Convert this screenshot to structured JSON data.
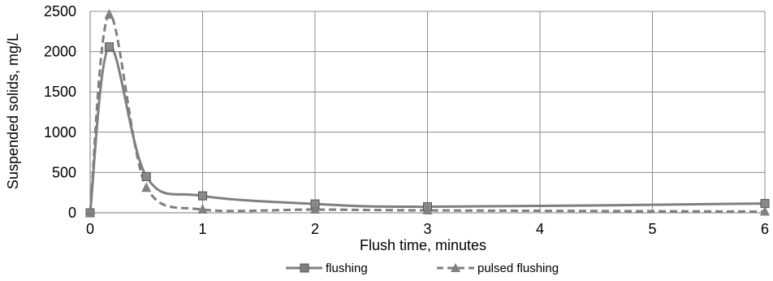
{
  "chart_data": {
    "type": "line",
    "xlabel": "Flush time, minutes",
    "ylabel": "Suspended solids, mg/L",
    "xlim": [
      0,
      6
    ],
    "ylim": [
      0,
      2500
    ],
    "x_ticks": [
      "0",
      "1",
      "2",
      "3",
      "4",
      "5",
      "6"
    ],
    "y_ticks": [
      "0",
      "500",
      "1000",
      "1500",
      "2000",
      "2500"
    ],
    "grid": true,
    "legend_position": "bottom",
    "series": [
      {
        "name": "flushing",
        "style": "solid",
        "marker": "square",
        "color": "#7f7f7f",
        "x": [
          0,
          0.17,
          0.5,
          1,
          2,
          3,
          6
        ],
        "y": [
          0,
          2060,
          450,
          210,
          110,
          75,
          115
        ]
      },
      {
        "name": "pulsed flushing",
        "style": "dashed",
        "marker": "triangle",
        "color": "#7f7f7f",
        "x": [
          0,
          0.17,
          0.5,
          1,
          2,
          3,
          6
        ],
        "y": [
          0,
          2460,
          310,
          40,
          40,
          30,
          15
        ]
      }
    ]
  }
}
